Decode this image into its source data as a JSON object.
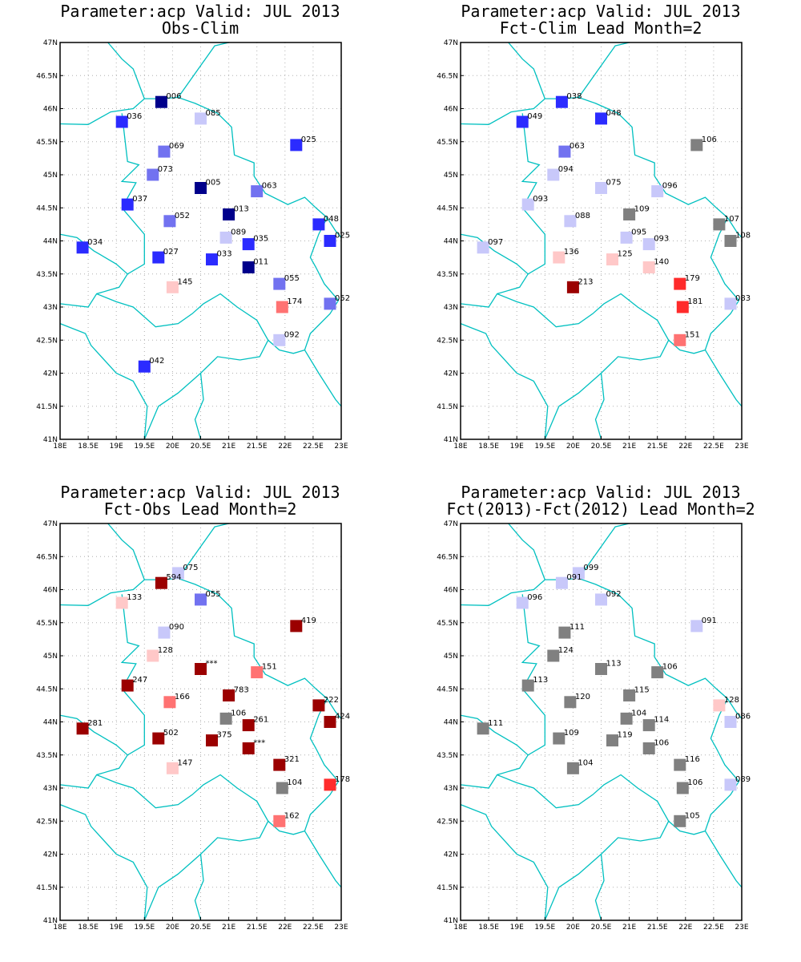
{
  "colors": {
    "dark_blue": "#00008b",
    "blue": "#2b2bff",
    "mid_blue": "#7272f0",
    "light_blue": "#c8c8fa",
    "light_red": "#ffc8c8",
    "mid_red": "#ff7272",
    "red": "#ff2b2b",
    "dark_red": "#9b0000",
    "gray": "#808080",
    "border": "#00c0c0"
  },
  "axes": {
    "x_ticks": [
      "18E",
      "18.5E",
      "19E",
      "19.5E",
      "20E",
      "20.5E",
      "21E",
      "21.5E",
      "22E",
      "22.5E",
      "23E"
    ],
    "y_ticks": [
      "47N",
      "46.5N",
      "46N",
      "45.5N",
      "45N",
      "44.5N",
      "44N",
      "43.5N",
      "43N",
      "42.5N",
      "42N",
      "41.5N",
      "41N"
    ],
    "xlim": [
      18,
      23
    ],
    "ylim": [
      41,
      47
    ]
  },
  "panels": [
    {
      "title1": "Parameter:acp Valid: JUL 2013",
      "title2": "Obs-Clim",
      "stations": [
        {
          "lon": 19.8,
          "lat": 46.1,
          "label": "006",
          "c": "dark_blue"
        },
        {
          "lon": 20.5,
          "lat": 45.85,
          "label": "085",
          "c": "light_blue"
        },
        {
          "lon": 19.1,
          "lat": 45.8,
          "label": "036",
          "c": "blue"
        },
        {
          "lon": 22.2,
          "lat": 45.45,
          "label": "025",
          "c": "blue"
        },
        {
          "lon": 19.85,
          "lat": 45.35,
          "label": "069",
          "c": "mid_blue"
        },
        {
          "lon": 19.65,
          "lat": 45.0,
          "label": "073",
          "c": "mid_blue"
        },
        {
          "lon": 20.5,
          "lat": 44.8,
          "label": "005",
          "c": "dark_blue"
        },
        {
          "lon": 21.5,
          "lat": 44.75,
          "label": "063",
          "c": "mid_blue"
        },
        {
          "lon": 19.2,
          "lat": 44.55,
          "label": "037",
          "c": "blue"
        },
        {
          "lon": 21.0,
          "lat": 44.4,
          "label": "013",
          "c": "dark_blue"
        },
        {
          "lon": 19.95,
          "lat": 44.3,
          "label": "052",
          "c": "mid_blue"
        },
        {
          "lon": 22.6,
          "lat": 44.25,
          "label": "048",
          "c": "blue"
        },
        {
          "lon": 20.95,
          "lat": 44.05,
          "label": "089",
          "c": "light_blue"
        },
        {
          "lon": 22.8,
          "lat": 44.0,
          "label": "025",
          "c": "blue"
        },
        {
          "lon": 21.35,
          "lat": 43.95,
          "label": "035",
          "c": "blue"
        },
        {
          "lon": 18.4,
          "lat": 43.9,
          "label": "034",
          "c": "blue"
        },
        {
          "lon": 19.75,
          "lat": 43.75,
          "label": "027",
          "c": "blue"
        },
        {
          "lon": 20.7,
          "lat": 43.72,
          "label": "033",
          "c": "blue"
        },
        {
          "lon": 21.35,
          "lat": 43.6,
          "label": "011",
          "c": "dark_blue"
        },
        {
          "lon": 21.9,
          "lat": 43.35,
          "label": "055",
          "c": "mid_blue"
        },
        {
          "lon": 20.0,
          "lat": 43.3,
          "label": "145",
          "c": "light_red"
        },
        {
          "lon": 21.95,
          "lat": 43.0,
          "label": "174",
          "c": "mid_red"
        },
        {
          "lon": 22.8,
          "lat": 43.05,
          "label": "052",
          "c": "mid_blue"
        },
        {
          "lon": 21.9,
          "lat": 42.5,
          "label": "092",
          "c": "light_blue"
        },
        {
          "lon": 19.5,
          "lat": 42.1,
          "label": "042",
          "c": "blue"
        }
      ]
    },
    {
      "title1": "Parameter:acp Valid: JUL 2013",
      "title2": "Fct-Clim Lead Month=2",
      "stations": [
        {
          "lon": 19.8,
          "lat": 46.1,
          "label": "038",
          "c": "blue"
        },
        {
          "lon": 20.5,
          "lat": 45.85,
          "label": "048",
          "c": "blue"
        },
        {
          "lon": 19.1,
          "lat": 45.8,
          "label": "049",
          "c": "blue"
        },
        {
          "lon": 22.2,
          "lat": 45.45,
          "label": "106",
          "c": "gray"
        },
        {
          "lon": 19.85,
          "lat": 45.35,
          "label": "063",
          "c": "mid_blue"
        },
        {
          "lon": 19.65,
          "lat": 45.0,
          "label": "094",
          "c": "light_blue"
        },
        {
          "lon": 20.5,
          "lat": 44.8,
          "label": "075",
          "c": "light_blue"
        },
        {
          "lon": 21.5,
          "lat": 44.75,
          "label": "096",
          "c": "light_blue"
        },
        {
          "lon": 19.2,
          "lat": 44.55,
          "label": "093",
          "c": "light_blue"
        },
        {
          "lon": 21.0,
          "lat": 44.4,
          "label": "109",
          "c": "gray"
        },
        {
          "lon": 19.95,
          "lat": 44.3,
          "label": "088",
          "c": "light_blue"
        },
        {
          "lon": 22.6,
          "lat": 44.25,
          "label": "107",
          "c": "gray"
        },
        {
          "lon": 20.95,
          "lat": 44.05,
          "label": "095",
          "c": "light_blue"
        },
        {
          "lon": 22.8,
          "lat": 44.0,
          "label": "108",
          "c": "gray"
        },
        {
          "lon": 21.35,
          "lat": 43.95,
          "label": "093",
          "c": "light_blue"
        },
        {
          "lon": 18.4,
          "lat": 43.9,
          "label": "097",
          "c": "light_blue"
        },
        {
          "lon": 19.75,
          "lat": 43.75,
          "label": "136",
          "c": "light_red"
        },
        {
          "lon": 20.7,
          "lat": 43.72,
          "label": "125",
          "c": "light_red"
        },
        {
          "lon": 21.35,
          "lat": 43.6,
          "label": "140",
          "c": "light_red"
        },
        {
          "lon": 21.9,
          "lat": 43.35,
          "label": "179",
          "c": "red"
        },
        {
          "lon": 20.0,
          "lat": 43.3,
          "label": "213",
          "c": "dark_red"
        },
        {
          "lon": 21.95,
          "lat": 43.0,
          "label": "181",
          "c": "red"
        },
        {
          "lon": 22.8,
          "lat": 43.05,
          "label": "083",
          "c": "light_blue"
        },
        {
          "lon": 21.9,
          "lat": 42.5,
          "label": "151",
          "c": "mid_red"
        }
      ]
    },
    {
      "title1": "Parameter:acp Valid: JUL 2013",
      "title2": "Fct-Obs Lead Month=2",
      "stations": [
        {
          "lon": 20.1,
          "lat": 46.25,
          "label": "075",
          "c": "light_blue"
        },
        {
          "lon": 19.8,
          "lat": 46.1,
          "label": "594",
          "c": "dark_red"
        },
        {
          "lon": 20.5,
          "lat": 45.85,
          "label": "055",
          "c": "mid_blue"
        },
        {
          "lon": 19.1,
          "lat": 45.8,
          "label": "133",
          "c": "light_red"
        },
        {
          "lon": 22.2,
          "lat": 45.45,
          "label": "419",
          "c": "dark_red"
        },
        {
          "lon": 19.85,
          "lat": 45.35,
          "label": "090",
          "c": "light_blue"
        },
        {
          "lon": 19.65,
          "lat": 45.0,
          "label": "128",
          "c": "light_red"
        },
        {
          "lon": 20.5,
          "lat": 44.8,
          "label": "***",
          "c": "dark_red"
        },
        {
          "lon": 21.5,
          "lat": 44.75,
          "label": "151",
          "c": "mid_red"
        },
        {
          "lon": 19.2,
          "lat": 44.55,
          "label": "247",
          "c": "dark_red"
        },
        {
          "lon": 21.0,
          "lat": 44.4,
          "label": "783",
          "c": "dark_red"
        },
        {
          "lon": 19.95,
          "lat": 44.3,
          "label": "166",
          "c": "mid_red"
        },
        {
          "lon": 22.6,
          "lat": 44.25,
          "label": "222",
          "c": "dark_red"
        },
        {
          "lon": 20.95,
          "lat": 44.05,
          "label": "106",
          "c": "gray"
        },
        {
          "lon": 22.8,
          "lat": 44.0,
          "label": "424",
          "c": "dark_red"
        },
        {
          "lon": 21.35,
          "lat": 43.95,
          "label": "261",
          "c": "dark_red"
        },
        {
          "lon": 18.4,
          "lat": 43.9,
          "label": "281",
          "c": "dark_red"
        },
        {
          "lon": 19.75,
          "lat": 43.75,
          "label": "502",
          "c": "dark_red"
        },
        {
          "lon": 20.7,
          "lat": 43.72,
          "label": "375",
          "c": "dark_red"
        },
        {
          "lon": 21.35,
          "lat": 43.6,
          "label": "***",
          "c": "dark_red"
        },
        {
          "lon": 21.9,
          "lat": 43.35,
          "label": "321",
          "c": "dark_red"
        },
        {
          "lon": 20.0,
          "lat": 43.3,
          "label": "147",
          "c": "light_red"
        },
        {
          "lon": 21.95,
          "lat": 43.0,
          "label": "104",
          "c": "gray"
        },
        {
          "lon": 22.8,
          "lat": 43.05,
          "label": "178",
          "c": "red"
        },
        {
          "lon": 21.9,
          "lat": 42.5,
          "label": "162",
          "c": "mid_red"
        }
      ]
    },
    {
      "title1": "Parameter:acp Valid: JUL 2013",
      "title2": "Fct(2013)-Fct(2012) Lead Month=2",
      "stations": [
        {
          "lon": 20.1,
          "lat": 46.25,
          "label": "099",
          "c": "light_blue"
        },
        {
          "lon": 19.8,
          "lat": 46.1,
          "label": "091",
          "c": "light_blue"
        },
        {
          "lon": 20.5,
          "lat": 45.85,
          "label": "092",
          "c": "light_blue"
        },
        {
          "lon": 19.1,
          "lat": 45.8,
          "label": "096",
          "c": "light_blue"
        },
        {
          "lon": 22.2,
          "lat": 45.45,
          "label": "091",
          "c": "light_blue"
        },
        {
          "lon": 19.85,
          "lat": 45.35,
          "label": "111",
          "c": "gray"
        },
        {
          "lon": 19.65,
          "lat": 45.0,
          "label": "124",
          "c": "gray"
        },
        {
          "lon": 20.5,
          "lat": 44.8,
          "label": "113",
          "c": "gray"
        },
        {
          "lon": 21.5,
          "lat": 44.75,
          "label": "106",
          "c": "gray"
        },
        {
          "lon": 19.2,
          "lat": 44.55,
          "label": "113",
          "c": "gray"
        },
        {
          "lon": 21.0,
          "lat": 44.4,
          "label": "115",
          "c": "gray"
        },
        {
          "lon": 19.95,
          "lat": 44.3,
          "label": "120",
          "c": "gray"
        },
        {
          "lon": 22.6,
          "lat": 44.25,
          "label": "128",
          "c": "light_red"
        },
        {
          "lon": 20.95,
          "lat": 44.05,
          "label": "104",
          "c": "gray"
        },
        {
          "lon": 22.8,
          "lat": 44.0,
          "label": "086",
          "c": "light_blue"
        },
        {
          "lon": 21.35,
          "lat": 43.95,
          "label": "114",
          "c": "gray"
        },
        {
          "lon": 18.4,
          "lat": 43.9,
          "label": "111",
          "c": "gray"
        },
        {
          "lon": 19.75,
          "lat": 43.75,
          "label": "109",
          "c": "gray"
        },
        {
          "lon": 20.7,
          "lat": 43.72,
          "label": "119",
          "c": "gray"
        },
        {
          "lon": 21.35,
          "lat": 43.6,
          "label": "106",
          "c": "gray"
        },
        {
          "lon": 21.9,
          "lat": 43.35,
          "label": "116",
          "c": "gray"
        },
        {
          "lon": 20.0,
          "lat": 43.3,
          "label": "104",
          "c": "gray"
        },
        {
          "lon": 21.95,
          "lat": 43.0,
          "label": "106",
          "c": "gray"
        },
        {
          "lon": 22.8,
          "lat": 43.05,
          "label": "089",
          "c": "light_blue"
        },
        {
          "lon": 21.9,
          "lat": 42.5,
          "label": "105",
          "c": "gray"
        }
      ]
    }
  ]
}
